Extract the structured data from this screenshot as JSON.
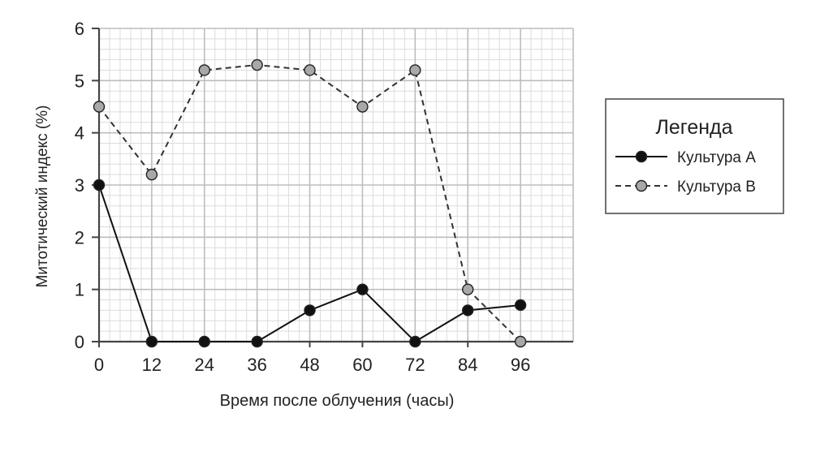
{
  "chart_data": {
    "type": "line",
    "title": "",
    "xlabel": "Время после облучения (часы)",
    "ylabel": "Митотический индекс (%)",
    "x": [
      0,
      12,
      24,
      36,
      48,
      60,
      72,
      84,
      96
    ],
    "x_ticks": [
      "0",
      "12",
      "24",
      "36",
      "48",
      "60",
      "72",
      "84",
      "96"
    ],
    "y_ticks": [
      "0",
      "1",
      "2",
      "3",
      "4",
      "5",
      "6"
    ],
    "xlim": [
      0,
      108
    ],
    "ylim": [
      0,
      6
    ],
    "grid": true,
    "legend_position": "right",
    "series": [
      {
        "name": "Культура A",
        "values": [
          3,
          0,
          0,
          0,
          0.6,
          1,
          0,
          0.6,
          0.7
        ],
        "line_style": "solid",
        "marker_color": "#111111",
        "line_color": "#111111"
      },
      {
        "name": "Культура B",
        "values": [
          4.5,
          3.2,
          5.2,
          5.3,
          5.2,
          4.5,
          5.2,
          1,
          0
        ],
        "line_style": "dashed",
        "marker_color": "#a8a8a8",
        "line_color": "#333333"
      }
    ]
  },
  "legend": {
    "title": "Легенда"
  },
  "colors": {
    "grid_major": "#bdbdbd",
    "grid_minor": "#dcdcdc",
    "axis": "#444444"
  }
}
